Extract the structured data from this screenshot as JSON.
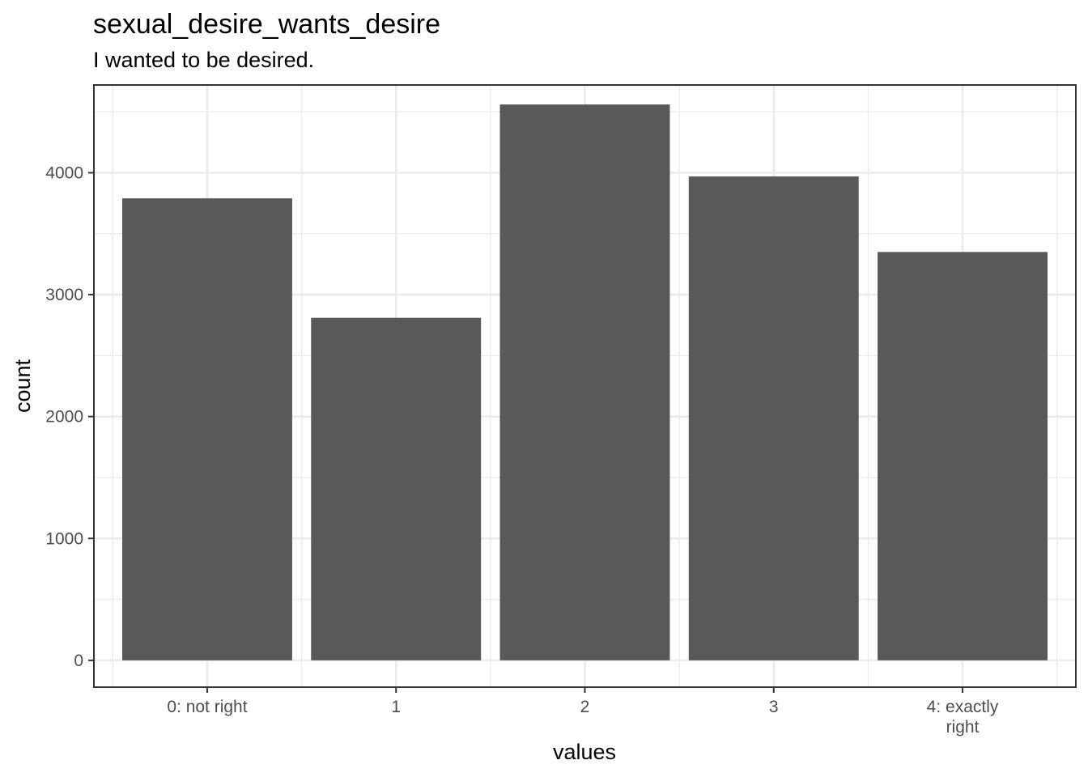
{
  "chart_data": {
    "type": "bar",
    "title": "sexual_desire_wants_desire",
    "subtitle": "I wanted to be desired.",
    "xlabel": "values",
    "ylabel": "count",
    "categories": [
      "0: not right",
      "1",
      "2",
      "3",
      "4: exactly right"
    ],
    "category_lines": [
      [
        "0: not right"
      ],
      [
        "1"
      ],
      [
        "2"
      ],
      [
        "3"
      ],
      [
        "4: exactly",
        "right"
      ]
    ],
    "values": [
      3790,
      2810,
      4560,
      3970,
      3350
    ],
    "ylim": [
      -220,
      4720
    ],
    "yticks": [
      0,
      1000,
      2000,
      3000,
      4000
    ],
    "ytick_labels": [
      "0",
      "1000",
      "2000",
      "3000",
      "4000"
    ],
    "grid": true,
    "bar_color": "#595959",
    "grid_color": "#ebebeb",
    "panel_border_color": "#333333"
  }
}
